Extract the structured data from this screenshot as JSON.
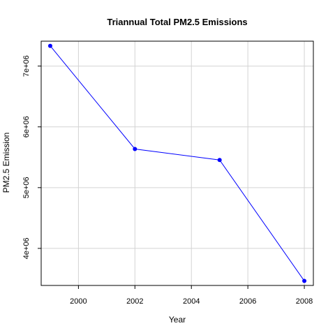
{
  "chart_data": {
    "type": "line",
    "title": "Triannual Total PM2.5 Emissions",
    "xlabel": "Year",
    "ylabel": "PM2.5 Emission",
    "x": [
      1999,
      2002,
      2005,
      2008
    ],
    "series": [
      {
        "values": [
          7332967,
          5635780,
          5454703,
          3464206
        ]
      }
    ],
    "xlim": [
      1998.68,
      2008.32
    ],
    "ylim": [
      3390000,
      7410000
    ],
    "x_ticks": [
      2000,
      2002,
      2004,
      2006,
      2008
    ],
    "x_tick_labels": [
      "2000",
      "2002",
      "2004",
      "2006",
      "2008"
    ],
    "y_ticks": [
      4000000,
      5000000,
      6000000,
      7000000
    ],
    "y_tick_labels": [
      "4e+06",
      "5e+06",
      "6e+06",
      "7e+06"
    ],
    "grid": true,
    "colors": {
      "line": "#0000ff",
      "points": "#0000ff",
      "grid": "#d3d3d3",
      "frame": "#000000"
    }
  }
}
